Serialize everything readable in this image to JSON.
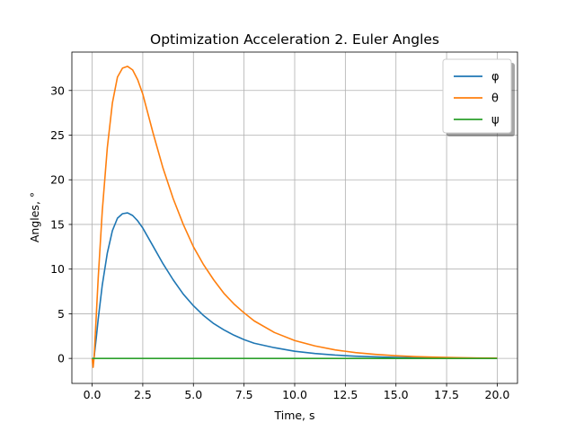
{
  "chart_data": {
    "type": "line",
    "title": "Optimization Acceleration 2. Euler Angles",
    "xlabel": "Time, s",
    "ylabel": "Angles, °",
    "xlim": [
      -1.0,
      21.0
    ],
    "ylim": [
      -2.8,
      34.3
    ],
    "xticks": [
      0.0,
      2.5,
      5.0,
      7.5,
      10.0,
      12.5,
      15.0,
      17.5,
      20.0
    ],
    "xtick_labels": [
      "0.0",
      "2.5",
      "5.0",
      "7.5",
      "10.0",
      "12.5",
      "15.0",
      "17.5",
      "20.0"
    ],
    "yticks": [
      0,
      5,
      10,
      15,
      20,
      25,
      30
    ],
    "ytick_labels": [
      "0",
      "5",
      "10",
      "15",
      "20",
      "25",
      "30"
    ],
    "grid": true,
    "legend_position": "top-right",
    "series": [
      {
        "name": "φ",
        "color": "#1f77b4",
        "x": [
          0,
          0.05,
          0.1,
          0.2,
          0.3,
          0.5,
          0.75,
          1.0,
          1.25,
          1.5,
          1.75,
          2.0,
          2.25,
          2.5,
          3.0,
          3.5,
          4.0,
          4.5,
          5.0,
          5.5,
          6.0,
          6.5,
          7.0,
          7.5,
          8.0,
          9.0,
          10.0,
          11.0,
          12.0,
          13.0,
          14.0,
          15.0,
          16.0,
          17.0,
          18.0,
          19.0,
          20.0
        ],
        "y": [
          0,
          -0.3,
          0.2,
          2.2,
          4.4,
          8.2,
          11.8,
          14.3,
          15.7,
          16.2,
          16.3,
          16.0,
          15.4,
          14.6,
          12.6,
          10.6,
          8.8,
          7.2,
          5.9,
          4.8,
          3.9,
          3.2,
          2.6,
          2.1,
          1.7,
          1.2,
          0.8,
          0.55,
          0.37,
          0.25,
          0.17,
          0.11,
          0.07,
          0.05,
          0.03,
          0.02,
          0.01
        ]
      },
      {
        "name": "θ",
        "color": "#ff7f0e",
        "x": [
          0,
          0.05,
          0.1,
          0.2,
          0.3,
          0.5,
          0.75,
          1.0,
          1.25,
          1.5,
          1.75,
          2.0,
          2.25,
          2.5,
          3.0,
          3.5,
          4.0,
          4.5,
          5.0,
          5.5,
          6.0,
          6.5,
          7.0,
          7.5,
          8.0,
          9.0,
          10.0,
          11.0,
          12.0,
          13.0,
          14.0,
          15.0,
          16.0,
          17.0,
          18.0,
          19.0,
          20.0
        ],
        "y": [
          0,
          -1.0,
          0.2,
          4.6,
          9.0,
          16.5,
          23.6,
          28.6,
          31.5,
          32.5,
          32.7,
          32.3,
          31.2,
          29.6,
          25.3,
          21.3,
          17.9,
          15.0,
          12.5,
          10.5,
          8.8,
          7.3,
          6.1,
          5.1,
          4.2,
          2.9,
          2.0,
          1.4,
          0.95,
          0.65,
          0.45,
          0.3,
          0.2,
          0.13,
          0.08,
          0.05,
          0.03
        ]
      },
      {
        "name": "ψ",
        "color": "#2ca02c",
        "x": [
          0,
          20
        ],
        "y": [
          0,
          0
        ]
      }
    ]
  }
}
